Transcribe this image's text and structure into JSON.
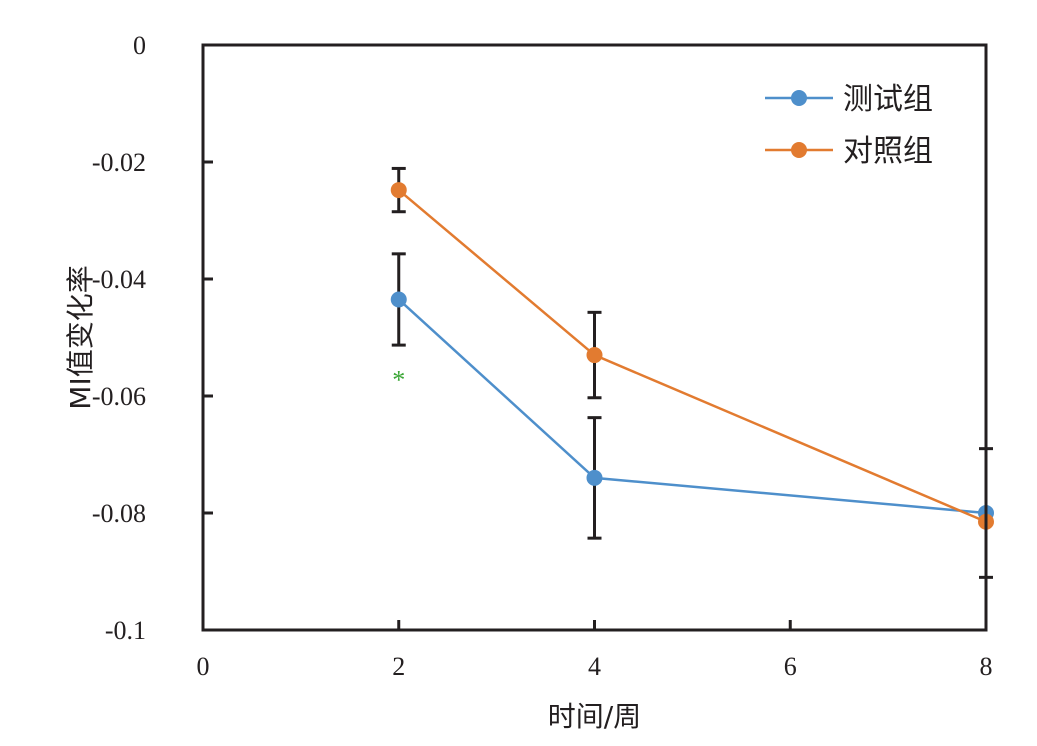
{
  "chart_data": {
    "type": "line",
    "xlabel": "时间/周",
    "ylabel": "MI值变化率",
    "xlim": [
      0,
      8
    ],
    "ylim": [
      -0.1,
      0
    ],
    "xticks": [
      0,
      2,
      4,
      6,
      8
    ],
    "xtick_labels": [
      "0",
      "2",
      "4",
      "6",
      "8"
    ],
    "yticks": [
      0,
      -0.02,
      -0.04,
      -0.06,
      -0.08,
      -0.1
    ],
    "ytick_labels": [
      "0",
      "-0.02",
      "-0.04",
      "-0.06",
      "-0.08",
      "-0.1"
    ],
    "legend_position": "top-right",
    "grid": false,
    "series": [
      {
        "name": "测试组",
        "color": "#4e8fcb",
        "x": [
          2,
          4,
          8
        ],
        "values": [
          -0.0435,
          -0.074,
          -0.08
        ],
        "error": [
          0.0078,
          0.0103,
          0
        ]
      },
      {
        "name": "对照组",
        "color": "#e27b30",
        "x": [
          2,
          4,
          8
        ],
        "values": [
          -0.0248,
          -0.053,
          -0.0815
        ],
        "error": [
          0.0037,
          0.0073,
          0
        ]
      }
    ],
    "extra_error_bars": [
      {
        "x": 8,
        "low": -0.091,
        "high": -0.069
      }
    ],
    "annotations": [
      {
        "text": "*",
        "x": 2,
        "y": -0.056,
        "color": "#3aa635"
      }
    ]
  }
}
